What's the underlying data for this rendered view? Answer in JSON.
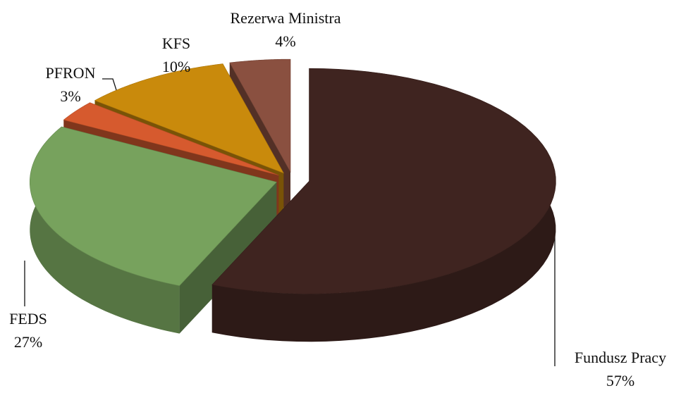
{
  "chart_data": {
    "type": "pie3d",
    "categories": [
      "Fundusz Pracy",
      "FEDS",
      "PFRON",
      "KFS",
      "Rezerwa Ministra"
    ],
    "values": [
      57,
      27,
      3,
      10,
      4
    ],
    "value_labels": [
      "57%",
      "27%",
      "3%",
      "10%",
      "4%"
    ],
    "colors": [
      "#3f2420",
      "#77a25d",
      "#d65a2e",
      "#c98a0c",
      "#8a5040"
    ]
  }
}
